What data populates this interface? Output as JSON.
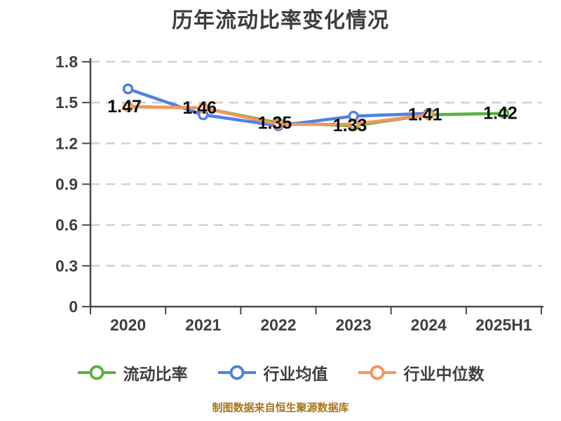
{
  "title": "历年流动比率变化情况",
  "footer": "制图数据来自恒生聚源数据库",
  "chart_data": {
    "type": "line",
    "categories": [
      "2020",
      "2021",
      "2022",
      "2023",
      "2024",
      "2025H1"
    ],
    "series": [
      {
        "name": "流动比率",
        "color": "#5ab43c",
        "values": [
          1.47,
          1.46,
          1.35,
          1.33,
          1.41,
          1.42
        ]
      },
      {
        "name": "行业均值",
        "color": "#5180e6",
        "values": [
          1.6,
          1.41,
          1.33,
          1.4,
          1.42,
          null
        ]
      },
      {
        "name": "行业中位数",
        "color": "#f2975c",
        "values": [
          1.47,
          1.46,
          1.34,
          1.34,
          1.41,
          null
        ]
      }
    ],
    "point_labels": [
      "1.47",
      "1.46",
      "1.35",
      "1.33",
      "1.41",
      "1.42"
    ],
    "labeled_series": "流动比率",
    "ylim": [
      0,
      1.8
    ],
    "yticks": [
      0,
      0.3,
      0.6,
      0.9,
      1.2,
      1.5,
      1.8
    ],
    "grid": "dashed",
    "legend_position": "bottom",
    "colors": {
      "axis": "#4a4a4a",
      "grid": "#d2d2d2",
      "tick_text": "#3f3f3f",
      "point_label_text": "#0d0d0d",
      "title_text": "#3d3d3d",
      "footer_text": "#a6761d",
      "marker_fill": "#ffffff"
    }
  }
}
